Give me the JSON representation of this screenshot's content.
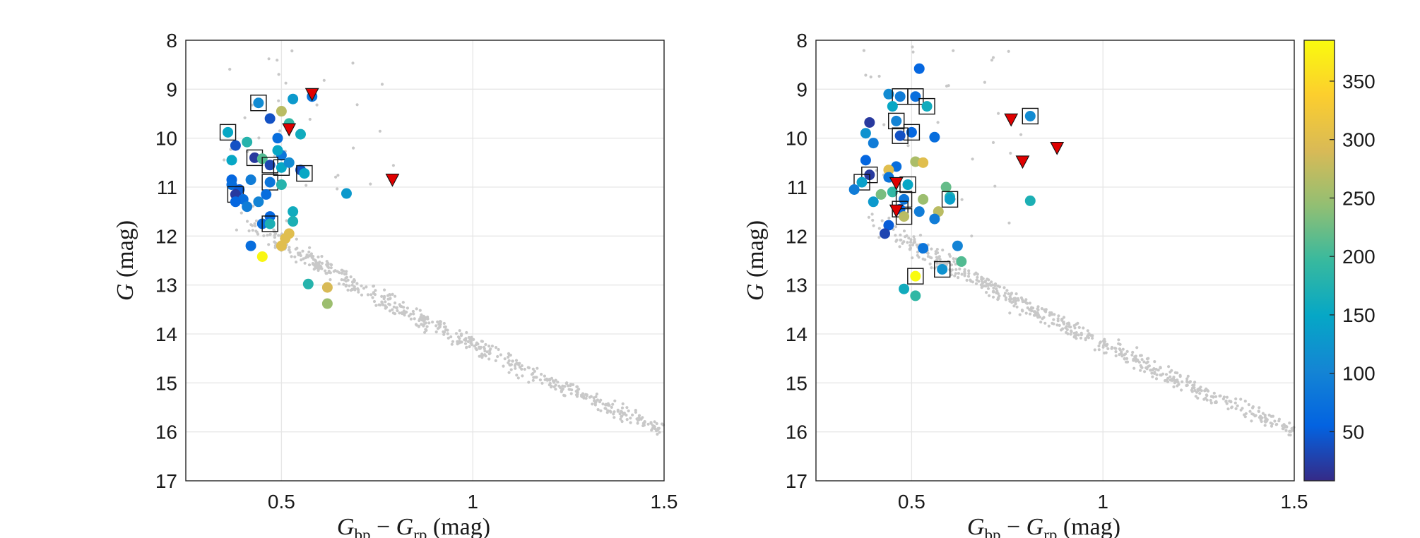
{
  "colorbar": {
    "range": [
      8,
      385
    ],
    "ticks": [
      "50",
      "100",
      "150",
      "200",
      "250",
      "300",
      "350"
    ],
    "colors": [
      "#352a87",
      "#0363e1",
      "#1485d4",
      "#06a7c6",
      "#38b99e",
      "#92bf73",
      "#d9ba56",
      "#fcce2e",
      "#f9fb0e"
    ]
  },
  "styles": {
    "background_points": "#c8c8c8",
    "flag_marker": "#e00000",
    "grid": "#e6e6e6"
  },
  "chart_data": [
    {
      "type": "scatter",
      "name": "left-panel",
      "xlabel_parts": [
        "G",
        "bp",
        " − ",
        "G",
        "rp",
        " (mag)"
      ],
      "ylabel_parts": [
        "G",
        " (mag)"
      ],
      "xlim": [
        0.25,
        1.5
      ],
      "ylim": [
        8,
        17
      ],
      "y_reversed": true,
      "xticks": [
        "0.5",
        "1",
        "1.5"
      ],
      "yticks": [
        "8",
        "9",
        "10",
        "11",
        "12",
        "13",
        "14",
        "15",
        "16",
        "17"
      ],
      "stars": [
        {
          "x": 0.44,
          "y": 9.28,
          "c": 110,
          "box": true
        },
        {
          "x": 0.53,
          "y": 9.2,
          "c": 130
        },
        {
          "x": 0.58,
          "y": 9.15,
          "c": 80
        },
        {
          "x": 0.5,
          "y": 9.45,
          "c": 270
        },
        {
          "x": 0.47,
          "y": 9.6,
          "c": 40
        },
        {
          "x": 0.52,
          "y": 9.7,
          "c": 190
        },
        {
          "x": 0.36,
          "y": 9.88,
          "c": 150,
          "box": true
        },
        {
          "x": 0.49,
          "y": 10.0,
          "c": 70
        },
        {
          "x": 0.55,
          "y": 9.92,
          "c": 160
        },
        {
          "x": 0.38,
          "y": 10.15,
          "c": 40
        },
        {
          "x": 0.41,
          "y": 10.08,
          "c": 180
        },
        {
          "x": 0.5,
          "y": 10.35,
          "c": 80
        },
        {
          "x": 0.43,
          "y": 10.4,
          "c": 20,
          "box": true
        },
        {
          "x": 0.45,
          "y": 10.42,
          "c": 210
        },
        {
          "x": 0.37,
          "y": 10.45,
          "c": 150
        },
        {
          "x": 0.47,
          "y": 10.55,
          "c": 30,
          "box": true
        },
        {
          "x": 0.49,
          "y": 10.25,
          "c": 150
        },
        {
          "x": 0.5,
          "y": 10.6,
          "c": 150,
          "box": true
        },
        {
          "x": 0.52,
          "y": 10.5,
          "c": 110
        },
        {
          "x": 0.55,
          "y": 10.65,
          "c": 40
        },
        {
          "x": 0.56,
          "y": 10.72,
          "c": 150,
          "box": true
        },
        {
          "x": 0.42,
          "y": 10.85,
          "c": 90
        },
        {
          "x": 0.37,
          "y": 10.85,
          "c": 60
        },
        {
          "x": 0.47,
          "y": 10.9,
          "c": 80,
          "box": true
        },
        {
          "x": 0.5,
          "y": 10.95,
          "c": 180
        },
        {
          "x": 0.37,
          "y": 10.95,
          "c": 70
        },
        {
          "x": 0.39,
          "y": 11.05,
          "c": 50
        },
        {
          "x": 0.38,
          "y": 11.15,
          "c": 20,
          "box": true
        },
        {
          "x": 0.46,
          "y": 11.15,
          "c": 70
        },
        {
          "x": 0.4,
          "y": 11.25,
          "c": 70
        },
        {
          "x": 0.38,
          "y": 11.3,
          "c": 60
        },
        {
          "x": 0.41,
          "y": 11.4,
          "c": 90
        },
        {
          "x": 0.44,
          "y": 11.3,
          "c": 100
        },
        {
          "x": 0.67,
          "y": 11.13,
          "c": 130
        },
        {
          "x": 0.53,
          "y": 11.5,
          "c": 160
        },
        {
          "x": 0.47,
          "y": 11.6,
          "c": 60
        },
        {
          "x": 0.53,
          "y": 11.7,
          "c": 170
        },
        {
          "x": 0.45,
          "y": 11.75,
          "c": 70
        },
        {
          "x": 0.47,
          "y": 11.75,
          "c": 170,
          "box": true
        },
        {
          "x": 0.52,
          "y": 11.95,
          "c": 300
        },
        {
          "x": 0.51,
          "y": 12.05,
          "c": 300
        },
        {
          "x": 0.5,
          "y": 12.2,
          "c": 300
        },
        {
          "x": 0.42,
          "y": 12.2,
          "c": 70
        },
        {
          "x": 0.45,
          "y": 12.42,
          "c": 380
        },
        {
          "x": 0.57,
          "y": 12.98,
          "c": 180
        },
        {
          "x": 0.62,
          "y": 13.05,
          "c": 290
        },
        {
          "x": 0.62,
          "y": 13.38,
          "c": 250
        }
      ],
      "flags": [
        {
          "x": 0.58,
          "y": 9.1
        },
        {
          "x": 0.52,
          "y": 9.82
        },
        {
          "x": 0.79,
          "y": 10.85
        }
      ]
    },
    {
      "type": "scatter",
      "name": "right-panel",
      "xlabel_parts": [
        "G",
        "bp",
        " − ",
        "G",
        "rp",
        " (mag)"
      ],
      "ylabel_parts": [
        "G",
        " (mag)"
      ],
      "xlim": [
        0.25,
        1.5
      ],
      "ylim": [
        8,
        17
      ],
      "y_reversed": true,
      "xticks": [
        "0.5",
        "1",
        "1.5"
      ],
      "yticks": [
        "8",
        "9",
        "10",
        "11",
        "12",
        "13",
        "14",
        "15",
        "16",
        "17"
      ],
      "stars": [
        {
          "x": 0.52,
          "y": 8.58,
          "c": 60
        },
        {
          "x": 0.44,
          "y": 9.1,
          "c": 110
        },
        {
          "x": 0.47,
          "y": 9.15,
          "c": 90,
          "box": true
        },
        {
          "x": 0.51,
          "y": 9.15,
          "c": 70,
          "box": true
        },
        {
          "x": 0.45,
          "y": 9.35,
          "c": 150
        },
        {
          "x": 0.54,
          "y": 9.35,
          "c": 160,
          "box": true
        },
        {
          "x": 0.81,
          "y": 9.55,
          "c": 110,
          "box": true
        },
        {
          "x": 0.46,
          "y": 9.65,
          "c": 100,
          "box": true
        },
        {
          "x": 0.39,
          "y": 9.68,
          "c": 20
        },
        {
          "x": 0.38,
          "y": 9.9,
          "c": 120
        },
        {
          "x": 0.5,
          "y": 9.88,
          "c": 60,
          "box": true
        },
        {
          "x": 0.47,
          "y": 9.95,
          "c": 40,
          "box": true
        },
        {
          "x": 0.56,
          "y": 9.98,
          "c": 70
        },
        {
          "x": 0.4,
          "y": 10.1,
          "c": 90
        },
        {
          "x": 0.38,
          "y": 10.45,
          "c": 60
        },
        {
          "x": 0.51,
          "y": 10.48,
          "c": 260
        },
        {
          "x": 0.53,
          "y": 10.5,
          "c": 300
        },
        {
          "x": 0.46,
          "y": 10.58,
          "c": 70
        },
        {
          "x": 0.44,
          "y": 10.65,
          "c": 300
        },
        {
          "x": 0.39,
          "y": 10.75,
          "c": 20,
          "box": true
        },
        {
          "x": 0.44,
          "y": 10.8,
          "c": 80
        },
        {
          "x": 0.37,
          "y": 10.9,
          "c": 140,
          "box": true
        },
        {
          "x": 0.49,
          "y": 10.95,
          "c": 150,
          "box": true
        },
        {
          "x": 0.59,
          "y": 11.0,
          "c": 220
        },
        {
          "x": 0.35,
          "y": 11.05,
          "c": 90
        },
        {
          "x": 0.45,
          "y": 11.1,
          "c": 190
        },
        {
          "x": 0.42,
          "y": 11.15,
          "c": 230
        },
        {
          "x": 0.6,
          "y": 11.2,
          "c": 170
        },
        {
          "x": 0.48,
          "y": 11.25,
          "c": 80,
          "box": true
        },
        {
          "x": 0.6,
          "y": 11.25,
          "c": 140,
          "box": true
        },
        {
          "x": 0.53,
          "y": 11.25,
          "c": 250
        },
        {
          "x": 0.4,
          "y": 11.3,
          "c": 130
        },
        {
          "x": 0.81,
          "y": 11.28,
          "c": 170
        },
        {
          "x": 0.47,
          "y": 11.45,
          "c": 60,
          "box": true
        },
        {
          "x": 0.52,
          "y": 11.5,
          "c": 90
        },
        {
          "x": 0.57,
          "y": 11.5,
          "c": 270
        },
        {
          "x": 0.48,
          "y": 11.6,
          "c": 270,
          "box": true
        },
        {
          "x": 0.56,
          "y": 11.65,
          "c": 90
        },
        {
          "x": 0.44,
          "y": 11.78,
          "c": 50
        },
        {
          "x": 0.43,
          "y": 11.95,
          "c": 30
        },
        {
          "x": 0.62,
          "y": 12.2,
          "c": 100
        },
        {
          "x": 0.53,
          "y": 12.25,
          "c": 80
        },
        {
          "x": 0.63,
          "y": 12.52,
          "c": 210
        },
        {
          "x": 0.58,
          "y": 12.68,
          "c": 120,
          "box": true
        },
        {
          "x": 0.51,
          "y": 12.82,
          "c": 385,
          "box": true
        },
        {
          "x": 0.48,
          "y": 13.08,
          "c": 160
        },
        {
          "x": 0.51,
          "y": 13.22,
          "c": 190
        }
      ],
      "flags": [
        {
          "x": 0.76,
          "y": 9.62
        },
        {
          "x": 0.88,
          "y": 10.2
        },
        {
          "x": 0.79,
          "y": 10.48
        },
        {
          "x": 0.46,
          "y": 10.92
        },
        {
          "x": 0.46,
          "y": 11.48
        }
      ]
    }
  ]
}
